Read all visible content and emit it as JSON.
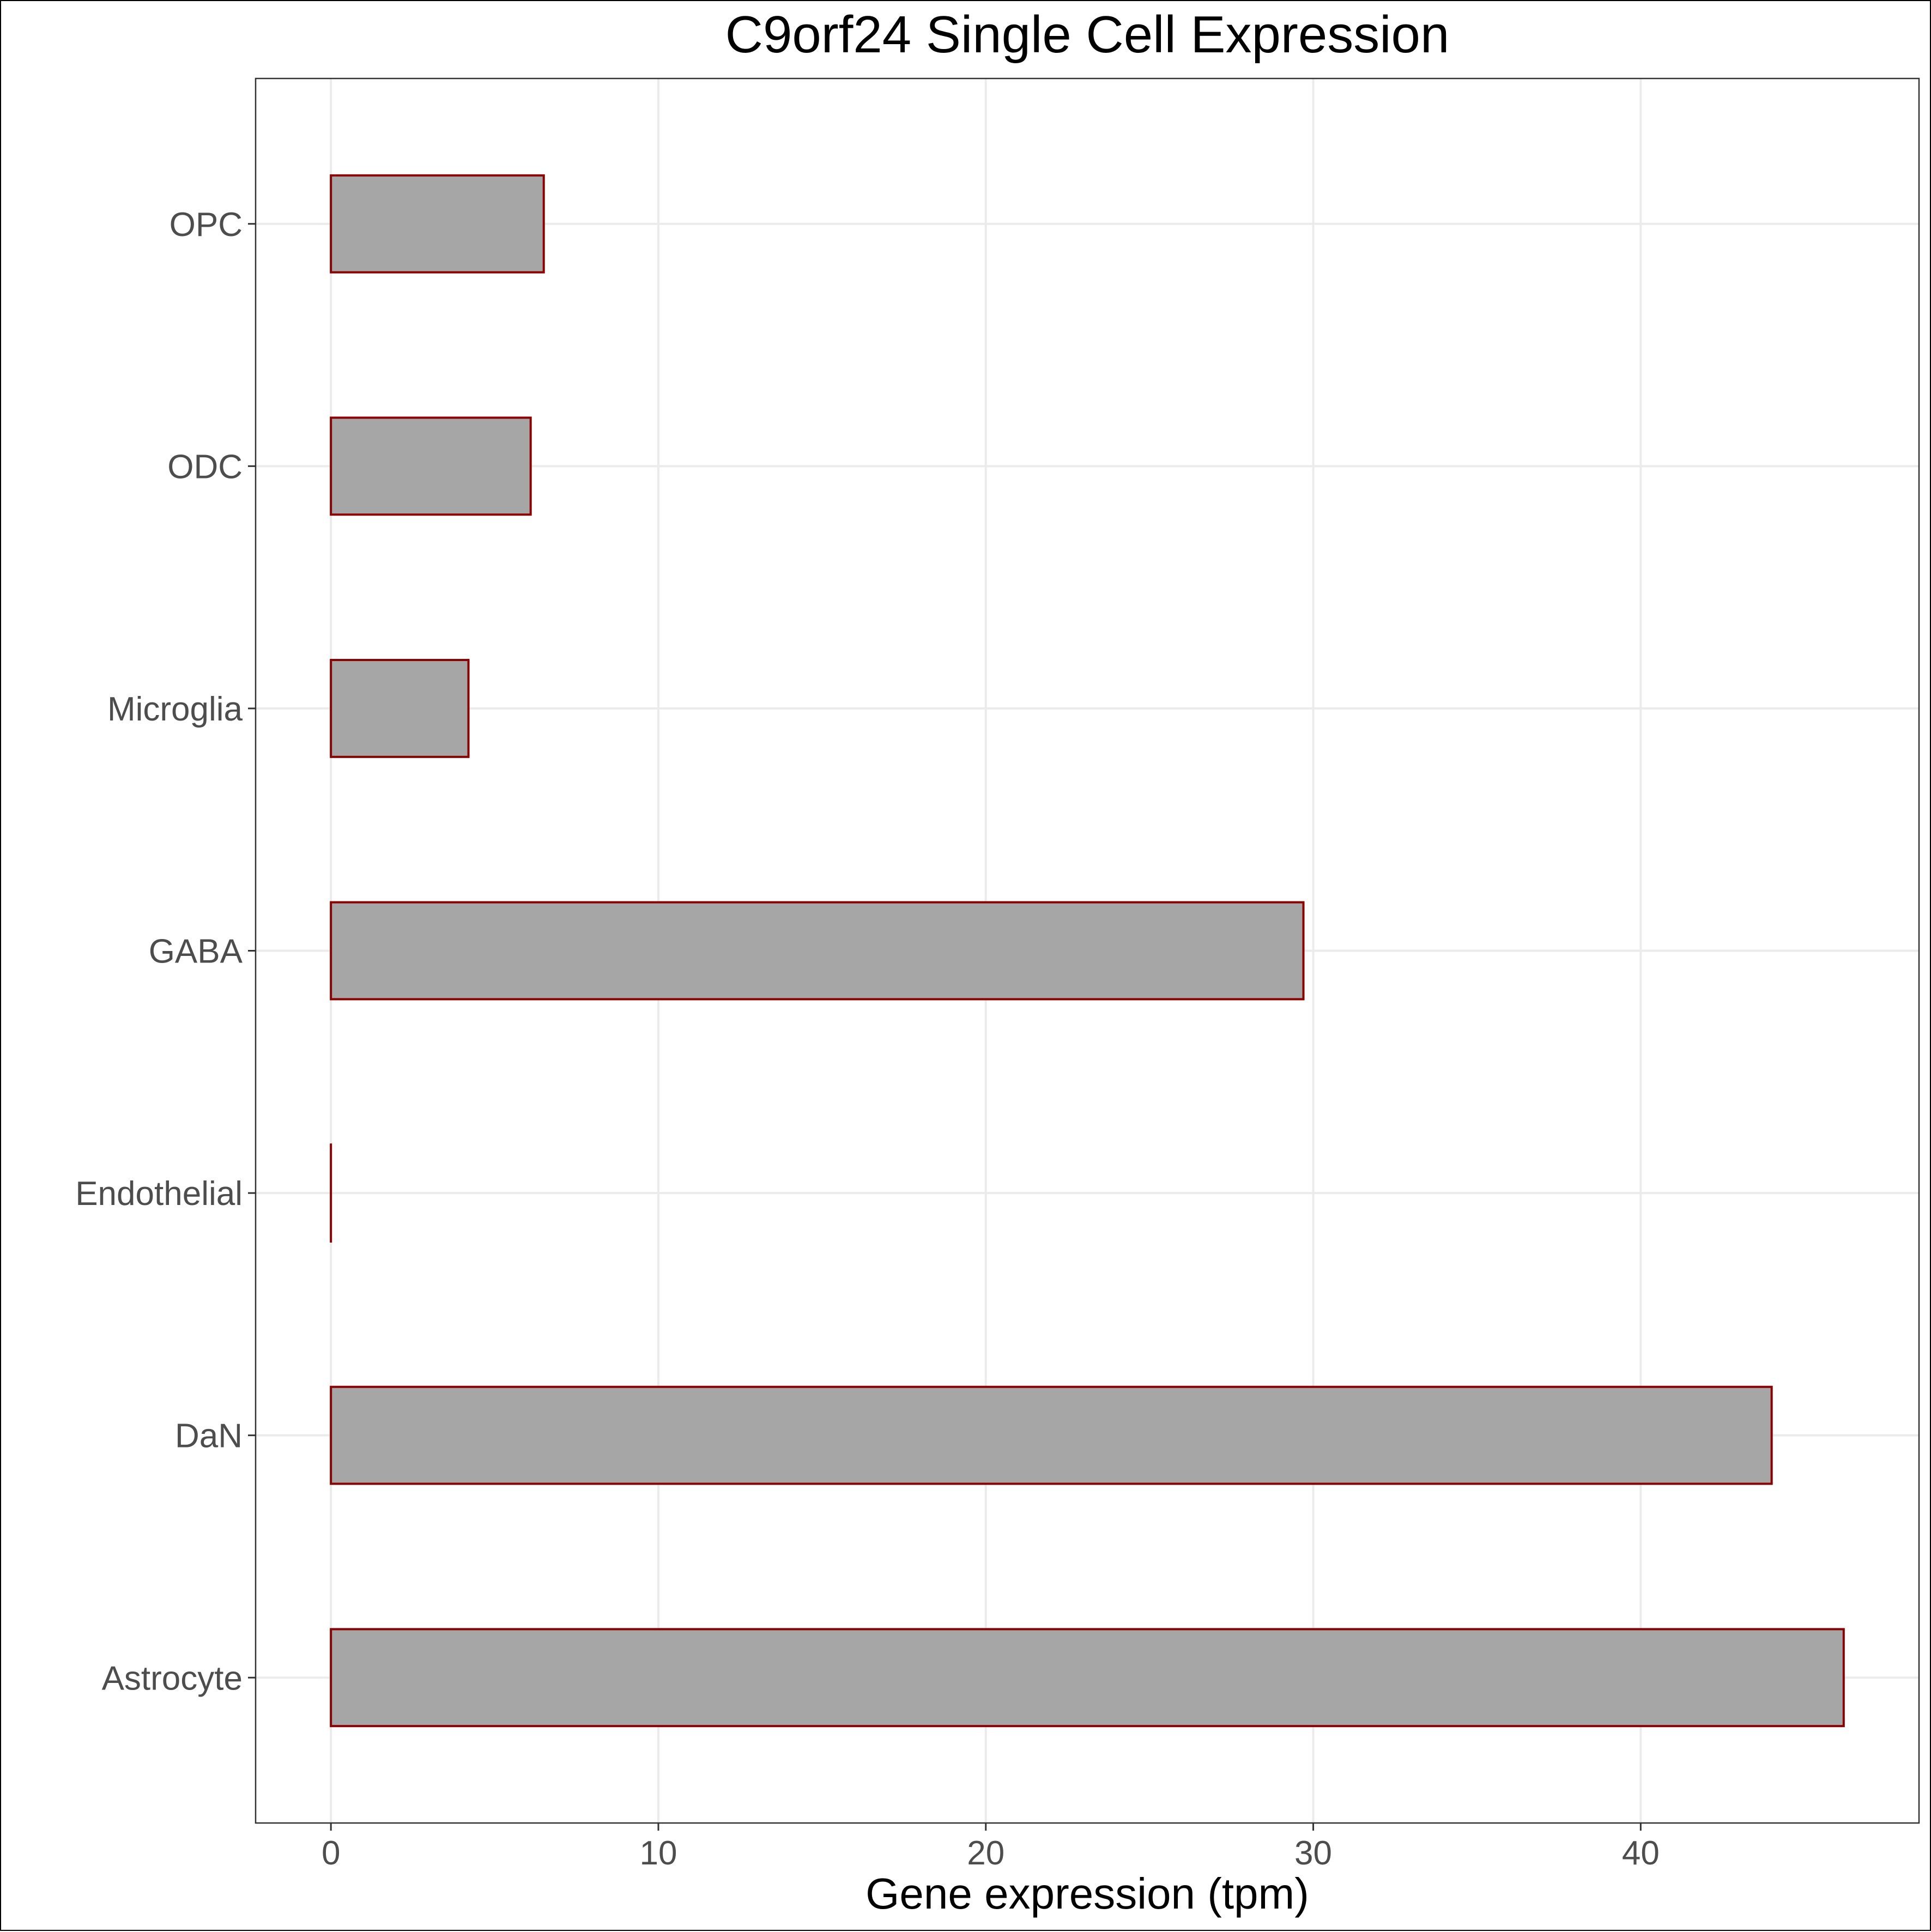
{
  "chart_data": {
    "type": "bar",
    "orientation": "horizontal",
    "title": "C9orf24 Single Cell Expression",
    "xlabel": "Gene expression (tpm)",
    "ylabel": "",
    "categories": [
      "Astrocyte",
      "DaN",
      "Endothelial",
      "GABA",
      "Microglia",
      "ODC",
      "OPC"
    ],
    "values": [
      46.2,
      44.0,
      0.0,
      29.7,
      4.2,
      6.1,
      6.5
    ],
    "xlim": [
      -2.3,
      48.5
    ],
    "xticks": [
      0,
      10,
      20,
      30,
      40
    ],
    "xtick_labels": [
      "0",
      "10",
      "20",
      "30",
      "40"
    ],
    "grid": true,
    "legend": "none",
    "colors": {
      "bar_fill": "#a6a6a6",
      "bar_outline": "#8b0000",
      "grid": "#ebebeb",
      "panel_border": "#333333",
      "tick_text": "#4d4d4d",
      "title_text": "#000000"
    }
  }
}
